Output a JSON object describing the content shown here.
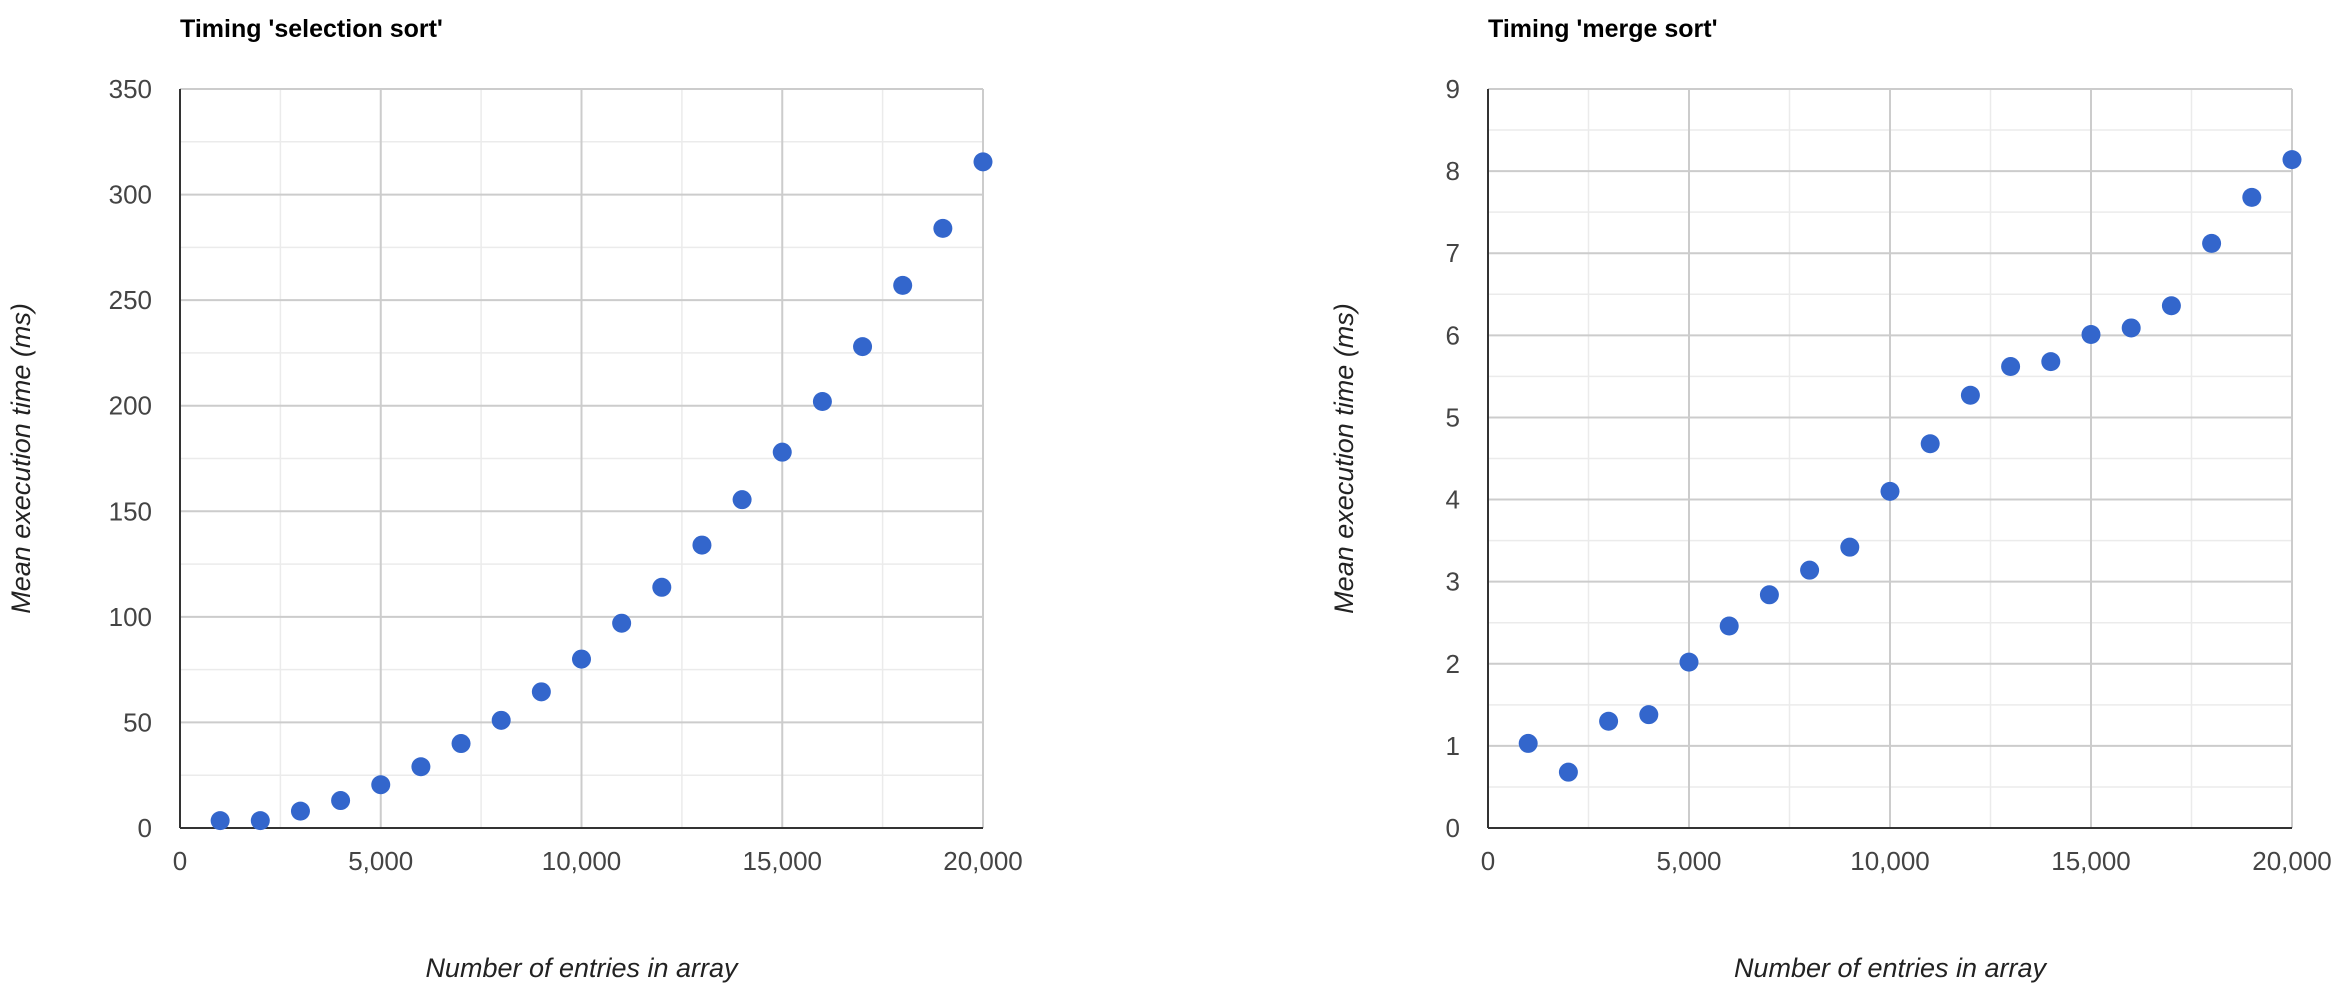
{
  "chart_data": [
    {
      "type": "scatter",
      "title": "Timing 'selection sort'",
      "xlabel": "Number of entries in array",
      "ylabel": "Mean execution time (ms)",
      "xlim": [
        0,
        20000
      ],
      "ylim": [
        0,
        350
      ],
      "x_ticks": [
        0,
        5000,
        10000,
        15000,
        20000
      ],
      "x_tick_labels": [
        "0",
        "5,000",
        "10,000",
        "15,000",
        "20,000"
      ],
      "y_ticks": [
        0,
        50,
        100,
        150,
        200,
        250,
        300,
        350
      ],
      "y_tick_labels": [
        "0",
        "50",
        "100",
        "150",
        "200",
        "250",
        "300",
        "350"
      ],
      "grid": true,
      "legend": "none",
      "color": "#3366cc",
      "series": [
        {
          "x": [
            1000,
            2000,
            3000,
            4000,
            5000,
            6000,
            7000,
            8000,
            9000,
            10000,
            11000,
            12000,
            13000,
            14000,
            15000,
            16000,
            17000,
            18000,
            19000,
            20000
          ],
          "y": [
            3.5,
            3.5,
            8,
            13,
            20.5,
            29,
            40,
            51,
            64.5,
            80,
            97,
            114,
            134,
            155.5,
            178,
            202,
            228,
            257,
            284,
            315.5
          ]
        }
      ]
    },
    {
      "type": "scatter",
      "title": "Timing 'merge sort'",
      "xlabel": "Number of entries in array",
      "ylabel": "Mean execution time (ms)",
      "xlim": [
        0,
        20000
      ],
      "ylim": [
        0,
        9
      ],
      "x_ticks": [
        0,
        5000,
        10000,
        15000,
        20000
      ],
      "x_tick_labels": [
        "0",
        "5,000",
        "10,000",
        "15,000",
        "20,000"
      ],
      "y_ticks": [
        0,
        1,
        2,
        3,
        4,
        5,
        6,
        7,
        8,
        9
      ],
      "y_tick_labels": [
        "0",
        "1",
        "2",
        "3",
        "4",
        "5",
        "6",
        "7",
        "8",
        "9"
      ],
      "grid": true,
      "legend": "none",
      "color": "#3366cc",
      "series": [
        {
          "x": [
            1000,
            2000,
            3000,
            4000,
            5000,
            6000,
            7000,
            8000,
            9000,
            10000,
            11000,
            12000,
            13000,
            14000,
            15000,
            16000,
            17000,
            18000,
            19000,
            20000
          ],
          "y": [
            1.03,
            0.68,
            1.3,
            1.38,
            2.02,
            2.46,
            2.84,
            3.14,
            3.42,
            4.1,
            4.68,
            5.27,
            5.62,
            5.68,
            6.01,
            6.09,
            6.36,
            7.12,
            7.68,
            8.14
          ]
        }
      ]
    }
  ]
}
